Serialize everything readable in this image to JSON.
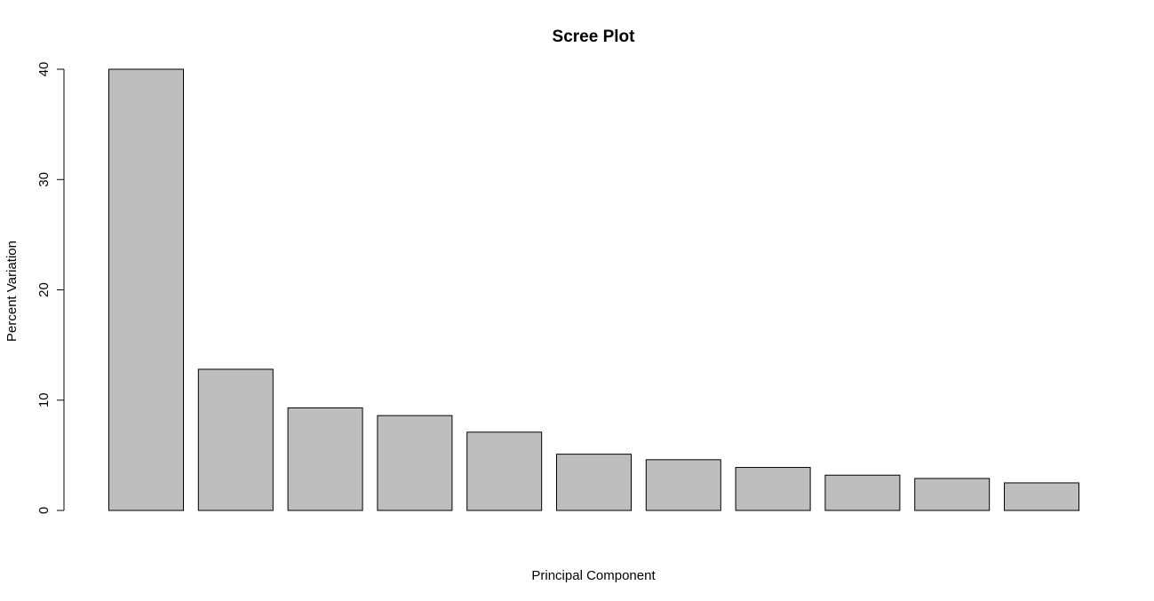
{
  "chart_data": {
    "type": "bar",
    "title": "Scree Plot",
    "xlabel": "Principal Component",
    "ylabel": "Percent Variation",
    "categories": [
      "",
      "",
      "",
      "",
      "",
      "",
      "",
      "",
      "",
      "",
      ""
    ],
    "values": [
      40.0,
      12.8,
      9.3,
      8.6,
      7.1,
      5.1,
      4.6,
      3.9,
      3.2,
      2.9,
      2.5
    ],
    "ylim": [
      0,
      40
    ],
    "yticks": [
      "0",
      "10",
      "20",
      "30",
      "40"
    ],
    "grid": false,
    "legend": "none",
    "bar_color": "#bebebe",
    "bar_edge_color": "#000000"
  }
}
